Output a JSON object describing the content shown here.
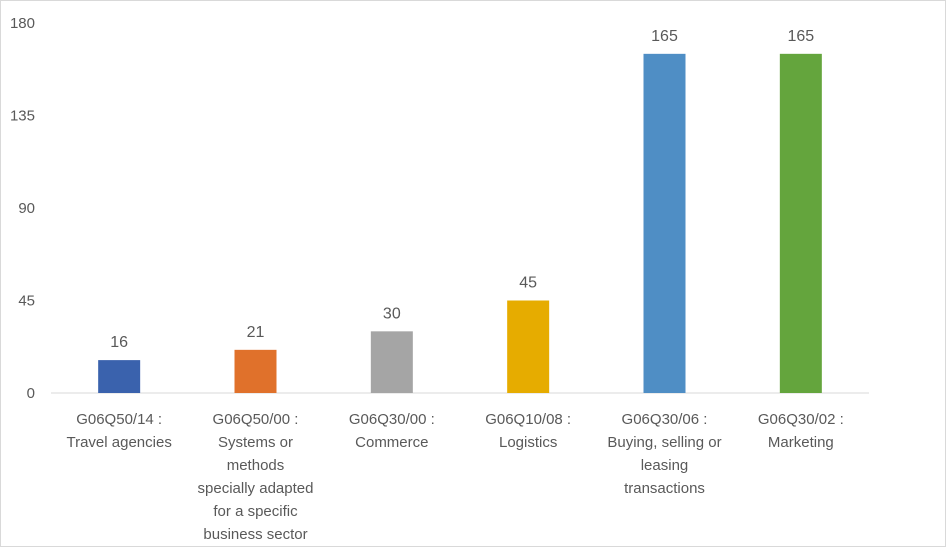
{
  "chart_data": {
    "type": "bar",
    "categories": [
      [
        "G06Q50/14 :",
        "Travel agencies"
      ],
      [
        "G06Q50/00 :",
        "Systems or",
        "methods",
        "specially adapted",
        "for a specific",
        "business sector"
      ],
      [
        "G06Q30/00 :",
        "Commerce"
      ],
      [
        "G06Q10/08 :",
        "Logistics"
      ],
      [
        "G06Q30/06 :",
        "Buying, selling or",
        "leasing",
        "transactions"
      ],
      [
        "G06Q30/02 :",
        "Marketing"
      ]
    ],
    "values": [
      16,
      21,
      30,
      45,
      165,
      165
    ],
    "colors": [
      "#3a62ad",
      "#e0712b",
      "#a5a5a5",
      "#e6ac00",
      "#4f8ec5",
      "#64a53d"
    ],
    "ylim": [
      0,
      180
    ],
    "yticks": [
      "0",
      "45",
      "90",
      "135",
      "180"
    ],
    "grid": false,
    "title": "",
    "xlabel": "",
    "ylabel": ""
  }
}
